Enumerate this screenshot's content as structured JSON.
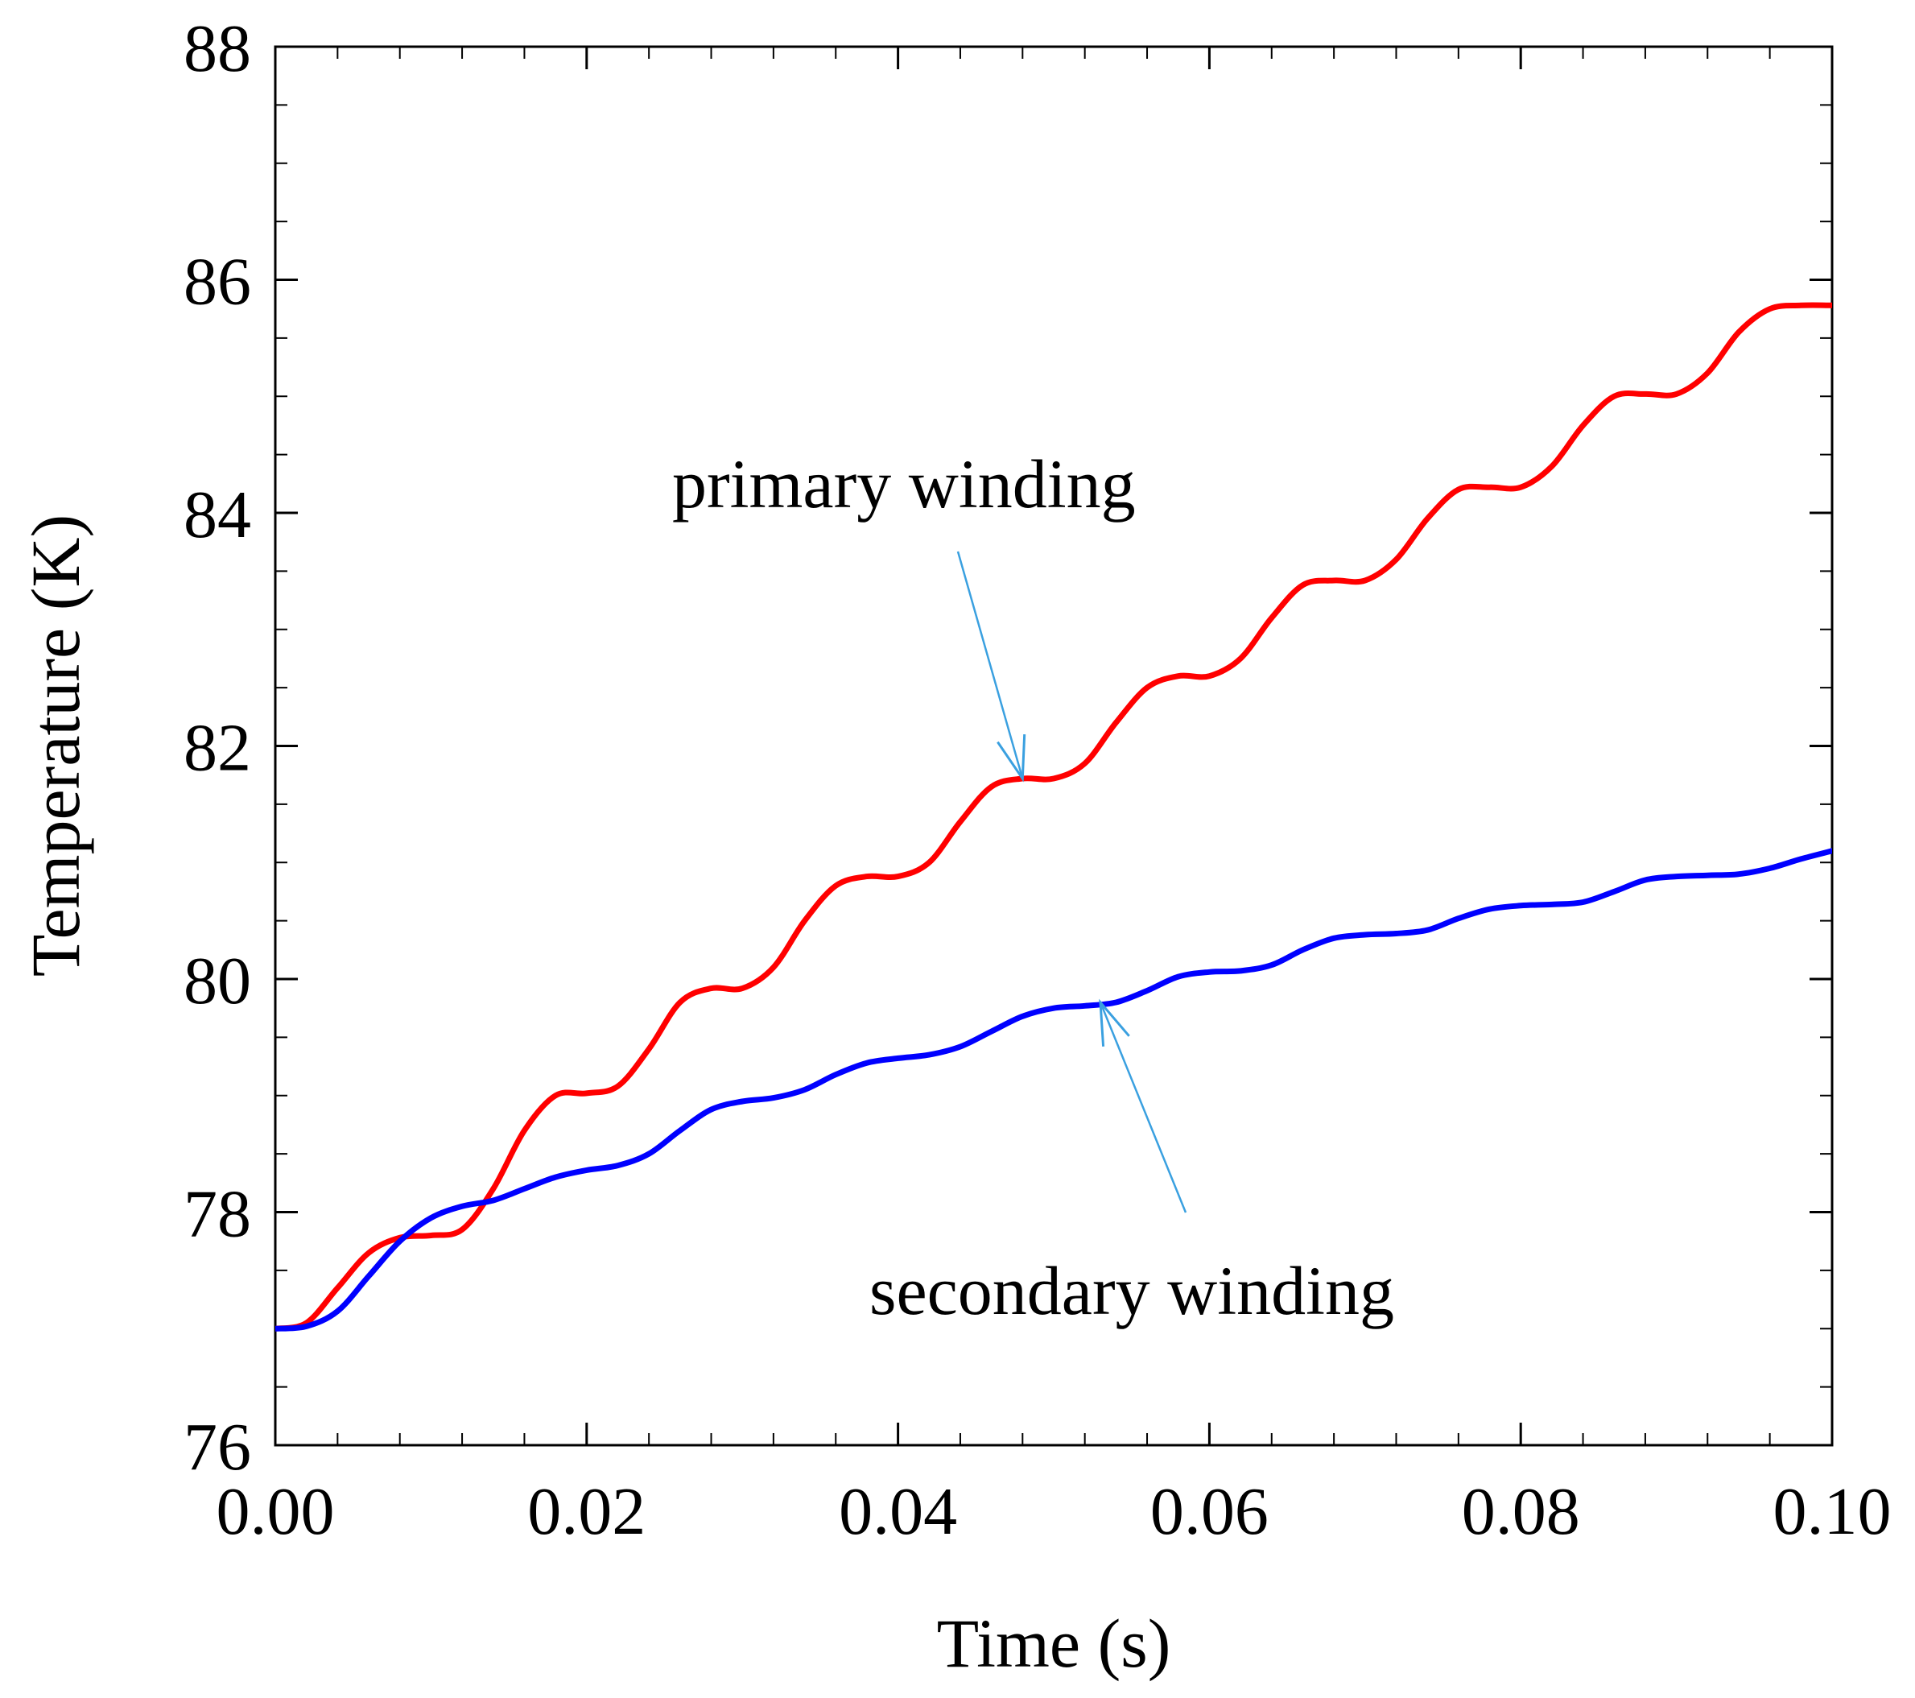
{
  "chart_data": {
    "type": "line",
    "title": "",
    "xlabel": "Time (s)",
    "ylabel": "Temperature (K)",
    "xlim": [
      0.0,
      0.1
    ],
    "ylim": [
      76,
      88
    ],
    "x_ticks": [
      "0.00",
      "0.02",
      "0.04",
      "0.06",
      "0.08",
      "0.10"
    ],
    "y_ticks": [
      "76",
      "78",
      "80",
      "82",
      "84",
      "86",
      "88"
    ],
    "grid": false,
    "series": [
      {
        "name": "primary winding",
        "color": "#ff0000",
        "x": [
          0.0,
          0.002,
          0.004,
          0.006,
          0.008,
          0.01,
          0.012,
          0.014,
          0.016,
          0.018,
          0.02,
          0.022,
          0.024,
          0.026,
          0.028,
          0.03,
          0.032,
          0.034,
          0.036,
          0.038,
          0.04,
          0.042,
          0.044,
          0.046,
          0.048,
          0.05,
          0.052,
          0.054,
          0.056,
          0.058,
          0.06,
          0.062,
          0.064,
          0.066,
          0.068,
          0.07,
          0.072,
          0.074,
          0.076,
          0.078,
          0.08,
          0.082,
          0.084,
          0.086,
          0.088,
          0.09,
          0.092,
          0.094,
          0.096,
          0.098,
          0.1
        ],
        "y": [
          77.0,
          77.05,
          77.35,
          77.65,
          77.78,
          77.8,
          77.85,
          78.2,
          78.7,
          79.0,
          79.02,
          79.08,
          79.4,
          79.8,
          79.92,
          79.92,
          80.1,
          80.5,
          80.8,
          80.88,
          80.88,
          81.0,
          81.35,
          81.65,
          81.72,
          81.72,
          81.85,
          82.2,
          82.5,
          82.6,
          82.6,
          82.75,
          83.1,
          83.38,
          83.42,
          83.42,
          83.6,
          83.95,
          84.2,
          84.22,
          84.22,
          84.4,
          84.75,
          85.0,
          85.02,
          85.02,
          85.2,
          85.55,
          85.75,
          85.78,
          85.78
        ]
      },
      {
        "name": "secondary winding",
        "color": "#0000ff",
        "x": [
          0.0,
          0.002,
          0.004,
          0.006,
          0.008,
          0.01,
          0.012,
          0.014,
          0.016,
          0.018,
          0.02,
          0.022,
          0.024,
          0.026,
          0.028,
          0.03,
          0.032,
          0.034,
          0.036,
          0.038,
          0.04,
          0.042,
          0.044,
          0.046,
          0.048,
          0.05,
          0.052,
          0.054,
          0.056,
          0.058,
          0.06,
          0.062,
          0.064,
          0.066,
          0.068,
          0.07,
          0.072,
          0.074,
          0.076,
          0.078,
          0.08,
          0.082,
          0.084,
          0.086,
          0.088,
          0.09,
          0.092,
          0.094,
          0.096,
          0.098,
          0.1
        ],
        "y": [
          77.0,
          77.02,
          77.15,
          77.45,
          77.75,
          77.95,
          78.05,
          78.1,
          78.2,
          78.3,
          78.36,
          78.4,
          78.5,
          78.7,
          78.88,
          78.95,
          78.98,
          79.05,
          79.18,
          79.28,
          79.32,
          79.35,
          79.42,
          79.55,
          79.68,
          79.75,
          79.77,
          79.8,
          79.9,
          80.02,
          80.06,
          80.07,
          80.12,
          80.25,
          80.35,
          80.38,
          80.39,
          80.42,
          80.52,
          80.6,
          80.63,
          80.64,
          80.66,
          80.75,
          80.85,
          80.88,
          80.89,
          80.9,
          80.95,
          81.03,
          81.1
        ]
      }
    ],
    "annotations": [
      {
        "text": "primary winding",
        "series": "primary winding",
        "arrow_to": [
          0.048,
          81.72
        ]
      },
      {
        "text": "secondary winding",
        "series": "secondary winding",
        "arrow_to": [
          0.053,
          79.8
        ]
      }
    ],
    "annotation_arrow_color": "#3aa0e0"
  }
}
